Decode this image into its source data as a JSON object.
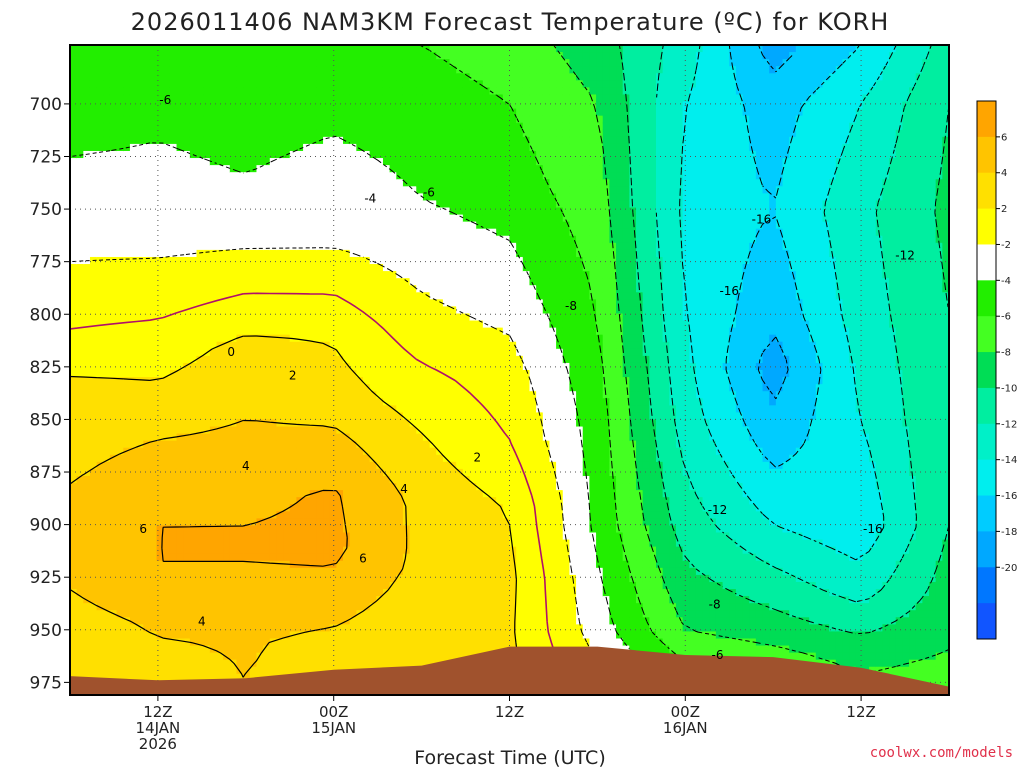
{
  "title": "2026011406 NAM3KM Forecast Temperature (ºC) for KORH",
  "credit": "coolwx.com/models",
  "chart_data": {
    "type": "heatmap",
    "title": "2026011406 NAM3KM Forecast Temperature (ºC) for KORH",
    "xlabel": "Forecast Time (UTC)",
    "ylabel": "Pressure (hPa)",
    "xlim_hours": [
      6,
      66
    ],
    "ylim_hpa": [
      672,
      981
    ],
    "y_ticks": [
      700,
      725,
      750,
      775,
      800,
      825,
      850,
      875,
      900,
      925,
      950,
      975
    ],
    "y_tick_labels": [
      "700",
      "725",
      "750",
      "775",
      "800",
      "825",
      "850",
      "875",
      "900",
      "925",
      "950",
      "975"
    ],
    "x_ticks": [
      {
        "hour": 12,
        "lines": [
          "12Z",
          "14JAN",
          "2026"
        ]
      },
      {
        "hour": 24,
        "lines": [
          "00Z",
          "15JAN"
        ]
      },
      {
        "hour": 36,
        "lines": [
          "12Z"
        ]
      },
      {
        "hour": 48,
        "lines": [
          "00Z",
          "16JAN"
        ]
      },
      {
        "hour": 60,
        "lines": [
          "12Z"
        ]
      }
    ],
    "grid": true,
    "colorbar": {
      "position": "right",
      "levels": [
        8,
        6,
        4,
        2,
        -2,
        -4,
        -6,
        -8,
        -10,
        -12,
        -14,
        -16,
        -18,
        -20,
        -22
      ],
      "labels": [
        "6",
        "4",
        "2",
        "-2",
        "-4",
        "-6",
        "-8",
        "-10",
        "-12",
        "-14",
        "-16",
        "-18",
        "-20"
      ],
      "colors": [
        "#ffa500",
        "#ffc400",
        "#ffe000",
        "#ffff00",
        "#ffffff",
        "#22ee00",
        "#44ff22",
        "#00dd55",
        "#00eea0",
        "#00f0c8",
        "#00eeee",
        "#00ccff",
        "#00a8ff",
        "#0077ff",
        "#1155ff"
      ]
    },
    "temperature_profiles": [
      {
        "hour": 6,
        "temps": [
          {
            "p": 672,
            "t": -5.5
          },
          {
            "p": 700,
            "t": -5
          },
          {
            "p": 750,
            "t": -3
          },
          {
            "p": 780,
            "t": -1.8
          },
          {
            "p": 810,
            "t": 0.2
          },
          {
            "p": 830,
            "t": 2.1
          },
          {
            "p": 860,
            "t": 3
          },
          {
            "p": 880,
            "t": 4
          },
          {
            "p": 905,
            "t": 4.5
          },
          {
            "p": 925,
            "t": 4.3
          },
          {
            "p": 950,
            "t": 3
          },
          {
            "p": 975,
            "t": 2
          }
        ]
      },
      {
        "hour": 12,
        "temps": [
          {
            "p": 672,
            "t": -5
          },
          {
            "p": 700,
            "t": -4.5
          },
          {
            "p": 760,
            "t": -2.8
          },
          {
            "p": 790,
            "t": -1
          },
          {
            "p": 815,
            "t": 1
          },
          {
            "p": 840,
            "t": 2.5
          },
          {
            "p": 870,
            "t": 4.8
          },
          {
            "p": 900,
            "t": 6
          },
          {
            "p": 925,
            "t": 6
          },
          {
            "p": 945,
            "t": 4.4
          },
          {
            "p": 975,
            "t": 3
          }
        ]
      },
      {
        "hour": 18,
        "temps": [
          {
            "p": 672,
            "t": -5.5
          },
          {
            "p": 700,
            "t": -5
          },
          {
            "p": 750,
            "t": -3.5
          },
          {
            "p": 775,
            "t": -1.5
          },
          {
            "p": 795,
            "t": 0.5
          },
          {
            "p": 815,
            "t": 2.5
          },
          {
            "p": 850,
            "t": 4
          },
          {
            "p": 885,
            "t": 5.5
          },
          {
            "p": 910,
            "t": 6.3
          },
          {
            "p": 930,
            "t": 5.5
          },
          {
            "p": 955,
            "t": 4.2
          },
          {
            "p": 975,
            "t": 4
          }
        ]
      },
      {
        "hour": 24,
        "temps": [
          {
            "p": 672,
            "t": -5.5
          },
          {
            "p": 700,
            "t": -4.5
          },
          {
            "p": 765,
            "t": -2.3
          },
          {
            "p": 785,
            "t": -0.5
          },
          {
            "p": 810,
            "t": 1.8
          },
          {
            "p": 840,
            "t": 3
          },
          {
            "p": 860,
            "t": 4.5
          },
          {
            "p": 885,
            "t": 6.2
          },
          {
            "p": 910,
            "t": 6.5
          },
          {
            "p": 930,
            "t": 5.5
          },
          {
            "p": 955,
            "t": 3.5
          },
          {
            "p": 975,
            "t": 3
          }
        ]
      },
      {
        "hour": 30,
        "temps": [
          {
            "p": 672,
            "t": -6
          },
          {
            "p": 700,
            "t": -5
          },
          {
            "p": 745,
            "t": -4
          },
          {
            "p": 780,
            "t": -2.5
          },
          {
            "p": 810,
            "t": -1
          },
          {
            "p": 830,
            "t": 0.5
          },
          {
            "p": 860,
            "t": 2.2
          },
          {
            "p": 890,
            "t": 3.5
          },
          {
            "p": 920,
            "t": 3.5
          },
          {
            "p": 950,
            "t": 2.5
          },
          {
            "p": 975,
            "t": 2
          }
        ]
      },
      {
        "hour": 36,
        "temps": [
          {
            "p": 672,
            "t": -7
          },
          {
            "p": 700,
            "t": -6
          },
          {
            "p": 740,
            "t": -5
          },
          {
            "p": 790,
            "t": -3
          },
          {
            "p": 830,
            "t": -1
          },
          {
            "p": 860,
            "t": 0
          },
          {
            "p": 890,
            "t": 1.8
          },
          {
            "p": 925,
            "t": 2.5
          },
          {
            "p": 950,
            "t": 2.3
          },
          {
            "p": 970,
            "t": 2.5
          }
        ]
      },
      {
        "hour": 42,
        "temps": [
          {
            "p": 672,
            "t": -9
          },
          {
            "p": 700,
            "t": -8
          },
          {
            "p": 750,
            "t": -7
          },
          {
            "p": 800,
            "t": -6
          },
          {
            "p": 850,
            "t": -5
          },
          {
            "p": 900,
            "t": -4.5
          },
          {
            "p": 950,
            "t": -3
          },
          {
            "p": 965,
            "t": -2
          }
        ]
      },
      {
        "hour": 48,
        "temps": [
          {
            "p": 672,
            "t": -13
          },
          {
            "p": 700,
            "t": -14
          },
          {
            "p": 750,
            "t": -14.5
          },
          {
            "p": 800,
            "t": -14
          },
          {
            "p": 850,
            "t": -13
          },
          {
            "p": 900,
            "t": -11
          },
          {
            "p": 950,
            "t": -8
          },
          {
            "p": 965,
            "t": -6
          }
        ]
      },
      {
        "hour": 54,
        "temps": [
          {
            "p": 672,
            "t": -19
          },
          {
            "p": 700,
            "t": -17
          },
          {
            "p": 750,
            "t": -16
          },
          {
            "p": 800,
            "t": -17.5
          },
          {
            "p": 825,
            "t": -19
          },
          {
            "p": 860,
            "t": -17
          },
          {
            "p": 900,
            "t": -14
          },
          {
            "p": 950,
            "t": -9
          },
          {
            "p": 965,
            "t": -7
          }
        ]
      },
      {
        "hour": 60,
        "temps": [
          {
            "p": 672,
            "t": -16
          },
          {
            "p": 700,
            "t": -14
          },
          {
            "p": 750,
            "t": -12.5
          },
          {
            "p": 800,
            "t": -13
          },
          {
            "p": 850,
            "t": -14
          },
          {
            "p": 900,
            "t": -15.5
          },
          {
            "p": 930,
            "t": -13
          },
          {
            "p": 960,
            "t": -9
          },
          {
            "p": 970,
            "t": -8
          }
        ]
      },
      {
        "hour": 66,
        "temps": [
          {
            "p": 672,
            "t": -11
          },
          {
            "p": 700,
            "t": -10
          },
          {
            "p": 750,
            "t": -9.5
          },
          {
            "p": 800,
            "t": -10
          },
          {
            "p": 850,
            "t": -10
          },
          {
            "p": 900,
            "t": -10
          },
          {
            "p": 950,
            "t": -8.5
          },
          {
            "p": 978,
            "t": -7
          }
        ]
      }
    ],
    "terrain_surface_hpa": [
      {
        "hour": 6,
        "p": 972
      },
      {
        "hour": 12,
        "p": 974
      },
      {
        "hour": 18,
        "p": 973
      },
      {
        "hour": 24,
        "p": 969
      },
      {
        "hour": 30,
        "p": 967
      },
      {
        "hour": 36,
        "p": 958
      },
      {
        "hour": 42,
        "p": 958
      },
      {
        "hour": 48,
        "p": 962
      },
      {
        "hour": 54,
        "p": 963
      },
      {
        "hour": 60,
        "p": 968
      },
      {
        "hour": 66,
        "p": 977
      }
    ],
    "contour_labels": [
      {
        "text": "-6",
        "hour": 12.5,
        "p": 699
      },
      {
        "text": "-4",
        "hour": 26.5,
        "p": 746
      },
      {
        "text": "-6",
        "hour": 30.5,
        "p": 743
      },
      {
        "text": "0",
        "hour": 17.0,
        "p": 819
      },
      {
        "text": "2",
        "hour": 21.2,
        "p": 830
      },
      {
        "text": "4",
        "hour": 18.0,
        "p": 873
      },
      {
        "text": "4",
        "hour": 28.8,
        "p": 884
      },
      {
        "text": "2",
        "hour": 33.8,
        "p": 869
      },
      {
        "text": "6",
        "hour": 11.0,
        "p": 903
      },
      {
        "text": "6",
        "hour": 26.0,
        "p": 917
      },
      {
        "text": "4",
        "hour": 15.0,
        "p": 947
      },
      {
        "text": "-8",
        "hour": 40.2,
        "p": 797
      },
      {
        "text": "-16",
        "hour": 51.0,
        "p": 790
      },
      {
        "text": "-16",
        "hour": 53.2,
        "p": 756
      },
      {
        "text": "-12",
        "hour": 63.0,
        "p": 773
      },
      {
        "text": "-12",
        "hour": 50.2,
        "p": 894
      },
      {
        "text": "-16",
        "hour": 60.8,
        "p": 903
      },
      {
        "text": "-8",
        "hour": 50.0,
        "p": 939
      },
      {
        "text": "-6",
        "hour": 50.2,
        "p": 963
      }
    ]
  }
}
